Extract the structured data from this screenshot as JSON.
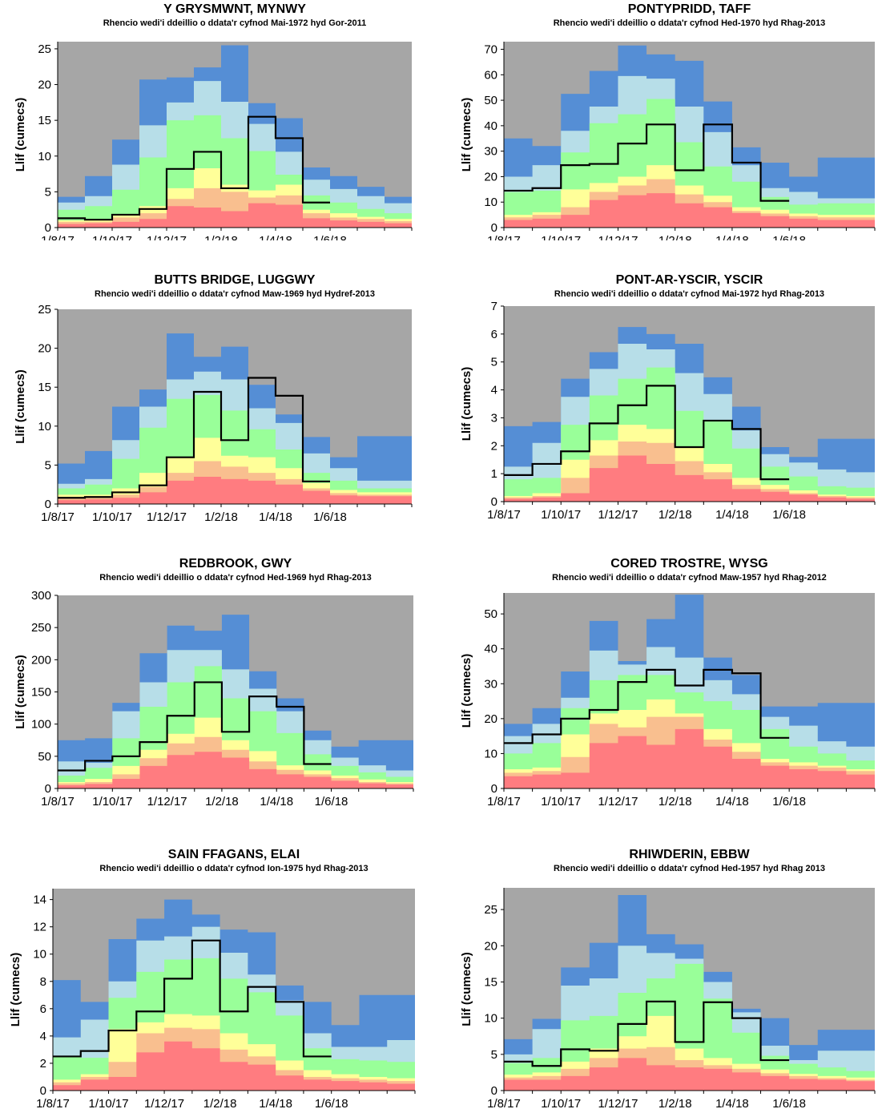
{
  "colors": {
    "background": "#a6a6a6",
    "red": "#ff7c80",
    "orange": "#f9bf8f",
    "yellow": "#ffff99",
    "green": "#99ff99",
    "lightblue": "#b7dee8",
    "blue": "#558ed5",
    "line": "#000000"
  },
  "chart_data": [
    {
      "type": "area",
      "title": "Y GRYSMWNT, MYNWY",
      "subtitle": "Rhencio wedi'i ddeillio o ddata'r cyfnod Mai-1972 hyd Gor-2011",
      "ylabel": "Llif (cumecs)",
      "ylim": [
        0,
        26
      ],
      "yticks": [
        0,
        5,
        10,
        15,
        20,
        25
      ],
      "xticks": [
        "1/8/17",
        "1/10/17",
        "1/12/17",
        "1/2/18",
        "1/4/18",
        "1/6/18"
      ],
      "bands": [
        [
          0.5,
          0.6,
          0.8,
          1.2,
          3.0,
          2.8,
          2.3,
          3.4,
          3.2,
          1.3,
          1.0,
          0.8,
          0.6
        ],
        [
          0.8,
          0.8,
          1.4,
          2.0,
          4.0,
          5.5,
          5.0,
          4.2,
          4.5,
          2.0,
          1.4,
          1.2,
          0.9
        ],
        [
          1.0,
          1.1,
          1.9,
          3.0,
          5.5,
          8.3,
          6.0,
          5.2,
          6.0,
          2.5,
          2.0,
          1.5,
          1.2
        ],
        [
          2.5,
          3.0,
          5.3,
          9.8,
          15.0,
          15.7,
          12.5,
          10.7,
          7.4,
          4.5,
          3.5,
          2.6,
          2.0
        ],
        [
          3.5,
          4.4,
          8.8,
          14.3,
          17.5,
          20.5,
          17.6,
          14.5,
          10.6,
          6.7,
          5.4,
          4.4,
          3.4
        ],
        [
          4.3,
          7.2,
          12.3,
          20.7,
          21.0,
          22.4,
          25.5,
          17.4,
          15.3,
          8.4,
          7.2,
          5.7,
          4.3
        ]
      ],
      "observed": [
        1.3,
        1.1,
        1.8,
        2.6,
        8.2,
        10.6,
        5.5,
        15.5,
        12.5,
        3.5
      ]
    },
    {
      "type": "area",
      "title": "PONTYPRIDD,  TAFF",
      "subtitle": "Rhencio wedi'i ddeillio o ddata'r cyfnod Hed-1970 hyd  Rhag-2013",
      "ylabel": "Llif (cumecs)",
      "ylim": [
        0,
        73
      ],
      "yticks": [
        0,
        10,
        20,
        30,
        40,
        50,
        60,
        70
      ],
      "xticks": [
        "1/8/17",
        "1/10/17",
        "1/12/17",
        "1/2/18",
        "1/4/18",
        "1/6/18"
      ],
      "bands": [
        [
          3.0,
          3.5,
          5.0,
          10.8,
          12.7,
          13.5,
          9.5,
          8.0,
          5.7,
          4.5,
          3.5,
          3.0,
          3.0
        ],
        [
          4.0,
          5.0,
          8.0,
          14.0,
          16.5,
          19.0,
          13.0,
          10.0,
          6.5,
          5.5,
          4.5,
          4.0,
          4.0
        ],
        [
          5.0,
          6.0,
          15.0,
          17.5,
          20.0,
          24.5,
          16.5,
          12.5,
          8.0,
          7.0,
          5.5,
          5.0,
          5.0
        ],
        [
          14.0,
          14.5,
          29.5,
          41.0,
          44.5,
          50.5,
          33.5,
          24.0,
          18.0,
          12.0,
          9.0,
          9.5,
          9.5
        ],
        [
          20.0,
          24.5,
          38.0,
          47.5,
          59.5,
          58.5,
          47.5,
          37.5,
          24.5,
          15.5,
          14.0,
          11.5,
          11.5
        ],
        [
          35.0,
          32.0,
          52.5,
          61.5,
          71.5,
          68.0,
          65.5,
          49.5,
          31.5,
          25.5,
          20.0,
          27.5,
          27.5
        ]
      ],
      "observed": [
        14.5,
        15.5,
        24.5,
        25.0,
        33.0,
        40.5,
        22.5,
        40.5,
        25.5,
        10.5
      ]
    },
    {
      "type": "area",
      "title": "BUTTS BRIDGE, LUGGWY",
      "subtitle": "Rhencio wedi'i ddeillio o ddata'r cyfnod Maw-1969 hyd Hydref-2013",
      "ylabel": "Llif (cumecs)",
      "ylim": [
        0,
        25
      ],
      "yticks": [
        0,
        5,
        10,
        15,
        20,
        25
      ],
      "xticks": [
        "1/8/17",
        "1/10/17",
        "1/12/17",
        "1/2/18",
        "1/4/18",
        "1/6/18"
      ],
      "bands": [
        [
          0.5,
          0.6,
          0.8,
          1.5,
          3.0,
          3.5,
          3.2,
          3.0,
          2.5,
          1.7,
          1.1,
          1.0,
          1.0
        ],
        [
          0.8,
          0.9,
          1.2,
          2.2,
          4.0,
          5.5,
          4.8,
          4.0,
          3.2,
          2.0,
          1.4,
          1.2,
          1.2
        ],
        [
          1.2,
          1.2,
          2.0,
          4.0,
          6.0,
          8.5,
          6.2,
          6.0,
          4.6,
          2.7,
          1.8,
          1.5,
          1.5
        ],
        [
          2.0,
          2.5,
          5.8,
          9.8,
          13.5,
          14.0,
          12.0,
          9.6,
          7.0,
          4.0,
          3.0,
          2.0,
          2.0
        ],
        [
          2.6,
          3.2,
          8.2,
          12.5,
          16.0,
          17.0,
          16.0,
          12.3,
          10.4,
          6.5,
          4.6,
          3.0,
          3.0
        ],
        [
          5.2,
          6.8,
          12.5,
          14.7,
          21.9,
          18.9,
          20.2,
          15.3,
          11.5,
          8.6,
          6.0,
          8.7,
          8.7
        ]
      ],
      "observed": [
        0.8,
        0.9,
        1.5,
        2.4,
        6.0,
        14.4,
        8.2,
        16.2,
        13.9,
        2.9
      ]
    },
    {
      "type": "area",
      "title": "PONT-AR-YSCIR,  YSCIR",
      "subtitle": "Rhencio wedi'i ddeillio o ddata'r cyfnod Mai-1972 hyd Rhag-2013",
      "ylabel": "Llif (cumecs)",
      "ylim": [
        0,
        7
      ],
      "yticks": [
        0,
        1,
        2,
        3,
        4,
        5,
        6,
        7
      ],
      "xticks": [
        "1/8/17",
        "1/10/17",
        "1/12/17",
        "1/2/18",
        "1/4/18",
        "1/6/18"
      ],
      "bands": [
        [
          0.1,
          0.15,
          0.3,
          1.2,
          1.65,
          1.35,
          0.95,
          0.8,
          0.45,
          0.35,
          0.25,
          0.15,
          0.1
        ],
        [
          0.15,
          0.2,
          0.85,
          1.65,
          2.15,
          2.1,
          1.45,
          1.05,
          0.6,
          0.45,
          0.3,
          0.2,
          0.15
        ],
        [
          0.2,
          0.3,
          1.5,
          2.2,
          2.75,
          2.6,
          1.95,
          1.35,
          0.85,
          0.6,
          0.4,
          0.25,
          0.2
        ],
        [
          0.8,
          0.85,
          2.75,
          3.8,
          4.4,
          4.8,
          3.25,
          2.9,
          1.9,
          1.25,
          0.9,
          0.55,
          0.5
        ],
        [
          1.25,
          2.1,
          3.75,
          4.75,
          5.65,
          5.45,
          4.6,
          3.85,
          2.55,
          1.7,
          1.4,
          1.15,
          1.05
        ],
        [
          2.7,
          2.85,
          4.4,
          5.35,
          6.25,
          6.0,
          5.65,
          4.45,
          3.4,
          1.95,
          1.6,
          2.25,
          2.25
        ]
      ],
      "observed": [
        0.95,
        1.35,
        1.8,
        2.8,
        3.45,
        4.15,
        1.95,
        2.9,
        2.6,
        0.8
      ]
    },
    {
      "type": "area",
      "title": "REDBROOK,  GWY",
      "subtitle": "Rhencio wedi'i ddeillio o ddata'r cyfnod Hed-1969 hyd  Rhag-2013",
      "ylabel": "Llif (cumecs)",
      "ylim": [
        0,
        300
      ],
      "yticks": [
        0,
        50,
        100,
        150,
        200,
        250,
        300
      ],
      "xticks": [
        "1/8/17",
        "1/10/17",
        "1/12/17",
        "1/2/18",
        "1/4/18",
        "1/6/18"
      ],
      "bands": [
        [
          5,
          7,
          15,
          35,
          52,
          57,
          48,
          30,
          22,
          18,
          12,
          8,
          6
        ],
        [
          8,
          10,
          22,
          47,
          70,
          80,
          60,
          42,
          29,
          22,
          16,
          10,
          8
        ],
        [
          10,
          15,
          35,
          60,
          85,
          110,
          75,
          58,
          36,
          28,
          20,
          14,
          10
        ],
        [
          20,
          32,
          78,
          127,
          165,
          190,
          140,
          120,
          86,
          53,
          35,
          25,
          18
        ],
        [
          42,
          40,
          120,
          165,
          215,
          215,
          185,
          155,
          120,
          75,
          48,
          36,
          28
        ],
        [
          75,
          78,
          133,
          210,
          253,
          245,
          270,
          182,
          140,
          90,
          65,
          75,
          75
        ]
      ],
      "observed": [
        28,
        43,
        50,
        72,
        113,
        165,
        88,
        143,
        127,
        38
      ]
    },
    {
      "type": "area",
      "title": "CORED  TROSTRE,  WYSG",
      "subtitle": "Rhencio wedi'i ddeillio o ddata'r cyfnod Maw-1957 hyd Rhag-2012",
      "ylabel": "Llif (cumecs)",
      "ylim": [
        0,
        56
      ],
      "yticks": [
        0,
        10,
        20,
        30,
        40,
        50
      ],
      "xticks": [
        "1/8/17",
        "1/10/17",
        "1/12/17",
        "1/2/18",
        "1/4/18",
        "1/6/18"
      ],
      "bands": [
        [
          3.5,
          4.0,
          4.5,
          13.0,
          15.0,
          12.5,
          17.0,
          12.0,
          8.5,
          6.5,
          5.5,
          5.0,
          4.0
        ],
        [
          4.5,
          5.0,
          9.0,
          18.5,
          17.5,
          20.5,
          20.5,
          14.0,
          10.5,
          7.5,
          6.5,
          6.0,
          5.0
        ],
        [
          5.5,
          6.0,
          15.5,
          21.5,
          22.5,
          25.5,
          21.5,
          17.0,
          13.0,
          8.5,
          7.5,
          6.5,
          5.5
        ],
        [
          10.0,
          13.0,
          23.0,
          31.0,
          32.5,
          32.5,
          27.5,
          25.0,
          22.5,
          17.0,
          12.0,
          10.0,
          8.0
        ],
        [
          15.0,
          18.5,
          26.0,
          39.5,
          35.5,
          40.5,
          37.5,
          31.0,
          27.0,
          20.5,
          18.0,
          13.5,
          12.0
        ],
        [
          18.5,
          23.0,
          33.5,
          48.0,
          36.5,
          48.5,
          55.5,
          37.5,
          32.5,
          23.5,
          23.5,
          24.5,
          24.5
        ]
      ],
      "observed": [
        13.0,
        15.5,
        20.0,
        22.5,
        30.5,
        34.0,
        29.5,
        34.0,
        33.0,
        14.5
      ]
    },
    {
      "type": "area",
      "title": "SAIN  FFAGANS,  ELAI",
      "subtitle": "Rhencio wedi'i ddeillio o ddata'r cyfnod Ion-1975 hyd Rhag-2013",
      "ylabel": "Llif (cumecs)",
      "ylim": [
        0,
        14.8
      ],
      "yticks": [
        0,
        2,
        4,
        6,
        8,
        10,
        12,
        14
      ],
      "xticks": [
        "1/8/17",
        "1/10/17",
        "1/12/17",
        "1/2/18",
        "1/4/18",
        "1/6/18"
      ],
      "bands": [
        [
          0.4,
          0.8,
          1.0,
          2.8,
          3.6,
          3.1,
          2.1,
          1.9,
          1.1,
          0.8,
          0.7,
          0.6,
          0.5
        ],
        [
          0.6,
          1.0,
          2.1,
          4.2,
          4.6,
          4.5,
          3.0,
          2.5,
          1.5,
          1.0,
          0.9,
          0.8,
          0.7
        ],
        [
          0.8,
          1.2,
          4.5,
          5.0,
          5.6,
          5.5,
          4.2,
          3.4,
          2.2,
          1.5,
          1.2,
          1.0,
          0.9
        ],
        [
          2.5,
          2.4,
          6.8,
          8.7,
          9.6,
          9.7,
          8.2,
          7.2,
          5.5,
          3.1,
          2.3,
          2.2,
          2.1
        ],
        [
          3.9,
          5.2,
          8.0,
          11.0,
          11.3,
          12.0,
          10.1,
          8.5,
          6.6,
          4.2,
          3.2,
          3.2,
          3.7
        ],
        [
          8.1,
          6.5,
          11.1,
          12.6,
          14.0,
          12.9,
          11.8,
          11.6,
          7.7,
          6.5,
          4.8,
          7.0,
          7.0
        ]
      ],
      "observed": [
        2.5,
        2.9,
        4.4,
        5.8,
        8.2,
        11.0,
        5.8,
        7.6,
        6.5,
        2.5
      ]
    },
    {
      "type": "area",
      "title": "RHIWDERIN,  EBBW",
      "subtitle": "Rhencio wedi'i ddeillio o ddata'r cyfnod Hed-1957 hyd  Rhag 2013",
      "ylabel": "Llif (cumecs)",
      "ylim": [
        0,
        28
      ],
      "yticks": [
        0,
        5,
        10,
        15,
        20,
        25
      ],
      "xticks": [
        "1/8/17",
        "1/10/17",
        "1/12/17",
        "1/2/18",
        "1/4/18",
        "1/6/18"
      ],
      "bands": [
        [
          1.5,
          1.5,
          2.0,
          3.2,
          4.5,
          3.5,
          3.2,
          3.0,
          2.5,
          2.0,
          1.6,
          1.5,
          1.3
        ],
        [
          1.8,
          2.0,
          3.0,
          4.5,
          5.8,
          6.0,
          4.2,
          3.5,
          3.0,
          2.4,
          2.0,
          1.7,
          1.5
        ],
        [
          2.2,
          2.5,
          4.0,
          5.8,
          7.5,
          10.3,
          5.8,
          4.5,
          3.7,
          2.9,
          2.3,
          2.0,
          1.8
        ],
        [
          3.8,
          4.5,
          9.7,
          10.3,
          13.5,
          15.5,
          17.5,
          12.7,
          8.0,
          4.8,
          3.7,
          3.2,
          2.7
        ],
        [
          5.0,
          8.5,
          14.5,
          15.5,
          20.0,
          19.0,
          18.2,
          15.0,
          10.8,
          6.2,
          4.2,
          5.5,
          5.5
        ],
        [
          7.1,
          9.9,
          17.0,
          20.4,
          27.0,
          21.6,
          20.2,
          16.4,
          11.3,
          10.0,
          6.3,
          8.4,
          8.4
        ]
      ],
      "observed": [
        4.0,
        3.4,
        5.7,
        5.5,
        9.2,
        12.3,
        6.7,
        12.2,
        10.0,
        4.2
      ]
    }
  ]
}
